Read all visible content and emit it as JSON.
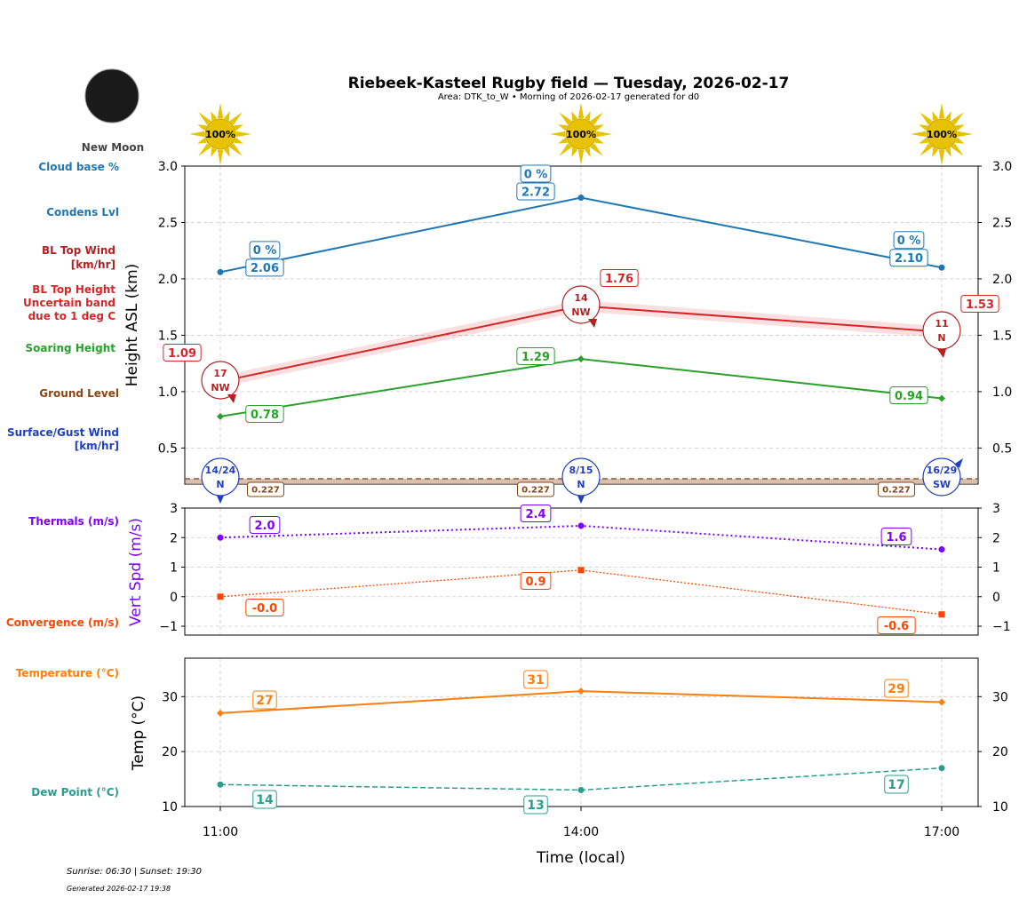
{
  "header": {
    "title": "Riebeek-Kasteel Rugby field — Tuesday, 2026-02-17",
    "subtitle": "Area: DTK_to_W • Morning of 2026-02-17 generated for d0",
    "moon_phase": "New Moon",
    "sun_labels": [
      "100%",
      "100%",
      "100%"
    ]
  },
  "footer": {
    "sun_times": "Sunrise: 06:30 | Sunset: 19:30",
    "generated": "Generated 2026-02-17 19:38"
  },
  "side_labels": {
    "cloud_base": "Cloud base %",
    "condens": "Condens Lvl",
    "bl_wind_1": "BL Top Wind",
    "bl_wind_2": "[km/hr]",
    "bl_top_1": "BL Top Height",
    "bl_top_2": "Uncertain band",
    "bl_top_3": "due to 1 deg C",
    "soaring": "Soaring Height",
    "ground": "Ground Level",
    "surface_1": "Surface/Gust Wind",
    "surface_2": "[km/hr]",
    "thermals": "Thermals (m/s)",
    "convergence": "Convergence (m/s)",
    "temperature": "Temperature (°C)",
    "dew": "Dew Point (°C)"
  },
  "colors": {
    "condens": "#1f77b4",
    "bl_top": "#d62728",
    "soaring": "#2ca02c",
    "ground": "#8b4513",
    "surface_wind": "#1f3fbf",
    "thermals": "#7f00ff",
    "convergence": "#ff4500",
    "temperature": "#ff7f0e",
    "dew": "#2a9d8f",
    "sun": "#e6c200"
  },
  "chart_data": [
    {
      "type": "line",
      "ylabel": "Height ASL (km)",
      "ylim": [
        0.18,
        3.0
      ],
      "yticks": [
        "0.5",
        "1.0",
        "1.5",
        "2.0",
        "2.5",
        "3.0"
      ],
      "x": [
        "11:00",
        "14:00",
        "17:00"
      ],
      "grid": true,
      "series": [
        {
          "name": "Condens Lvl",
          "values": [
            2.06,
            2.72,
            2.1
          ],
          "labels": [
            "2.06",
            "2.72",
            "2.10"
          ],
          "cloud_base_pct": [
            "0 %",
            "0 %",
            "0 %"
          ]
        },
        {
          "name": "BL Top Height",
          "values": [
            1.09,
            1.76,
            1.53
          ],
          "labels": [
            "1.09",
            "1.76",
            "1.53"
          ],
          "uncertainty_km": 0.05
        },
        {
          "name": "Soaring Height",
          "values": [
            0.78,
            1.29,
            0.94
          ],
          "labels": [
            "0.78",
            "1.29",
            "0.94"
          ]
        },
        {
          "name": "Ground Level",
          "values": [
            0.227,
            0.227,
            0.227
          ],
          "labels": [
            "0.227",
            "0.227",
            "0.227"
          ]
        }
      ],
      "bl_top_wind": [
        {
          "speed": "17",
          "dir": "NW"
        },
        {
          "speed": "14",
          "dir": "NW"
        },
        {
          "speed": "11",
          "dir": "N"
        }
      ],
      "surface_wind": [
        {
          "speed": "14/24",
          "dir": "N"
        },
        {
          "speed": "8/15",
          "dir": "N"
        },
        {
          "speed": "16/29",
          "dir": "SW"
        }
      ]
    },
    {
      "type": "line",
      "ylabel": "Vert Spd (m/s)",
      "ylim": [
        -1.3,
        3
      ],
      "yticks": [
        "−1",
        "0",
        "1",
        "2",
        "3"
      ],
      "x": [
        "11:00",
        "14:00",
        "17:00"
      ],
      "grid": true,
      "series": [
        {
          "name": "Thermals (m/s)",
          "values": [
            2.0,
            2.4,
            1.6
          ],
          "labels": [
            "2.0",
            "2.4",
            "1.6"
          ]
        },
        {
          "name": "Convergence (m/s)",
          "values": [
            0.0,
            0.9,
            -0.6
          ],
          "labels": [
            "-0.0",
            "0.9",
            "-0.6"
          ]
        }
      ]
    },
    {
      "type": "line",
      "ylabel": "Temp (°C)",
      "xlabel": "Time (local)",
      "ylim": [
        10,
        37
      ],
      "yticks": [
        "10",
        "20",
        "30"
      ],
      "x": [
        "11:00",
        "14:00",
        "17:00"
      ],
      "grid": true,
      "series": [
        {
          "name": "Temperature (°C)",
          "values": [
            27,
            31,
            29
          ],
          "labels": [
            "27",
            "31",
            "29"
          ]
        },
        {
          "name": "Dew Point (°C)",
          "values": [
            14,
            13,
            17
          ],
          "labels": [
            "14",
            "13",
            "17"
          ]
        }
      ]
    }
  ]
}
